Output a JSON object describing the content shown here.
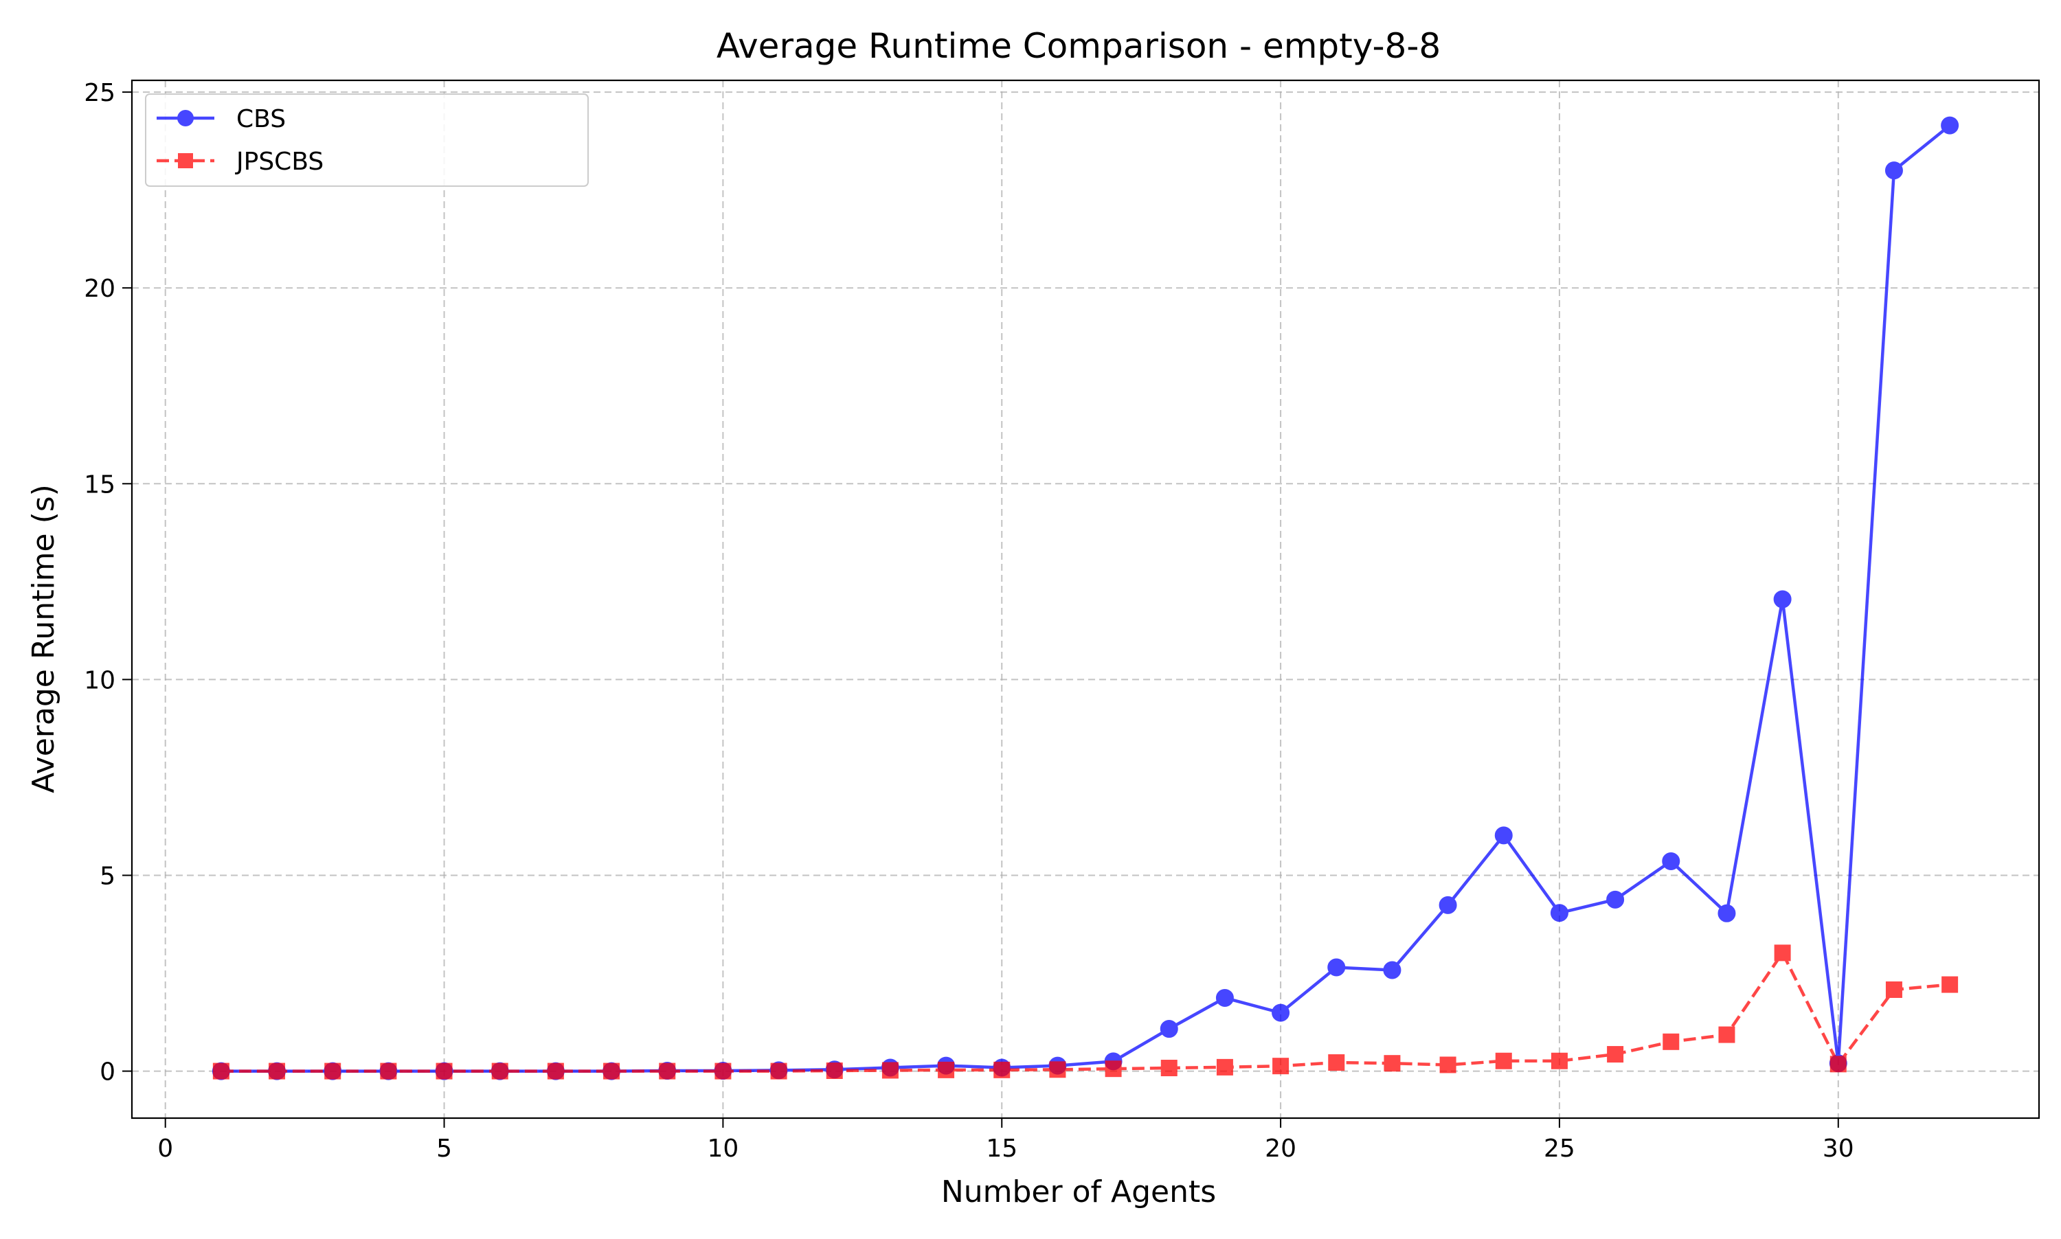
{
  "chart_data": {
    "type": "line",
    "title": "Average Runtime Comparison - empty-8-8",
    "xlabel": "Number of Agents",
    "ylabel": "Average Runtime (s)",
    "xlim": [
      -0.6,
      33.6
    ],
    "ylim": [
      -1.2,
      25.3
    ],
    "xticks": [
      0,
      5,
      10,
      15,
      20,
      25,
      30
    ],
    "yticks": [
      0,
      5,
      10,
      15,
      20,
      25
    ],
    "grid": true,
    "legend_position": "top-left",
    "x": [
      1,
      2,
      3,
      4,
      5,
      6,
      7,
      8,
      9,
      10,
      11,
      12,
      13,
      14,
      15,
      16,
      17,
      18,
      19,
      20,
      21,
      22,
      23,
      24,
      25,
      26,
      27,
      28,
      29,
      30,
      31,
      32
    ],
    "series": [
      {
        "name": "CBS",
        "color": "#0000ff",
        "marker": "circle",
        "line_style": "solid",
        "values": [
          0.0,
          0.0,
          0.0,
          0.0,
          0.0,
          0.0,
          0.0,
          0.0,
          0.01,
          0.01,
          0.02,
          0.04,
          0.09,
          0.14,
          0.09,
          0.14,
          0.25,
          1.08,
          1.87,
          1.49,
          2.65,
          2.58,
          4.24,
          6.02,
          4.04,
          4.38,
          5.36,
          4.03,
          12.05,
          0.2,
          23.0,
          24.15
        ]
      },
      {
        "name": "JPSCBS",
        "color": "#ff0000",
        "marker": "square",
        "line_style": "dashed",
        "values": [
          0.0,
          0.0,
          0.0,
          0.0,
          0.0,
          0.0,
          0.0,
          0.0,
          0.0,
          0.0,
          0.0,
          0.01,
          0.02,
          0.03,
          0.03,
          0.04,
          0.06,
          0.08,
          0.1,
          0.13,
          0.22,
          0.2,
          0.16,
          0.26,
          0.26,
          0.43,
          0.75,
          0.93,
          3.02,
          0.18,
          2.08,
          2.21
        ]
      }
    ]
  }
}
